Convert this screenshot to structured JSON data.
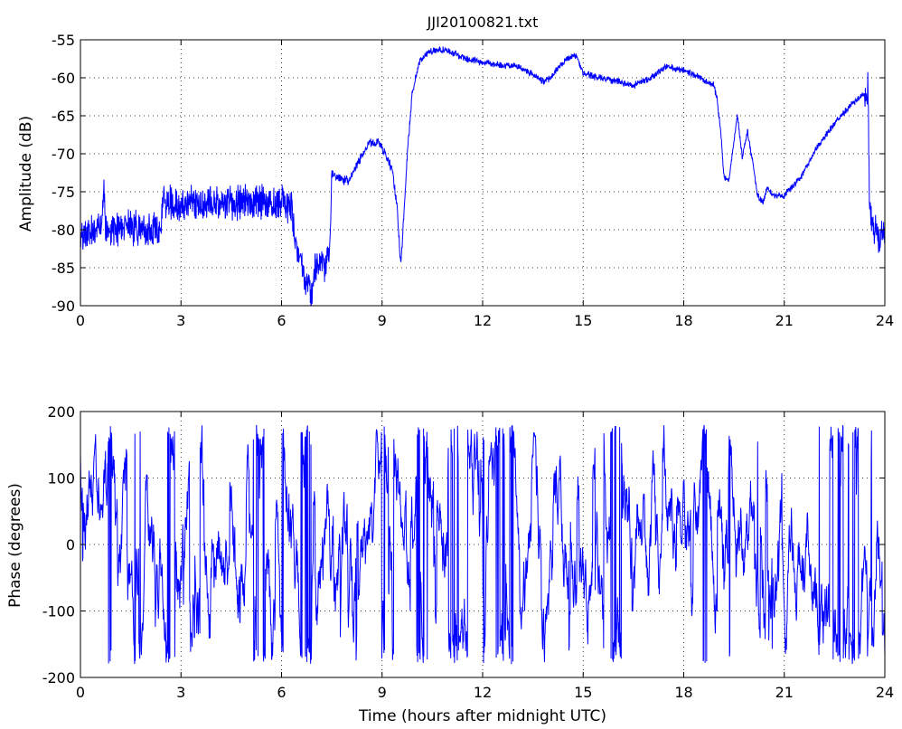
{
  "chart_data": [
    {
      "type": "line",
      "title": "JJI20100821.txt",
      "xlabel": "",
      "ylabel": "Amplitude (dB)",
      "xlim": [
        0,
        24
      ],
      "ylim": [
        -90,
        -55
      ],
      "xticks": [
        0,
        3,
        6,
        9,
        12,
        15,
        18,
        21,
        24
      ],
      "yticks": [
        -55,
        -60,
        -65,
        -70,
        -75,
        -80,
        -85,
        -90
      ],
      "grid": true,
      "color": "#0000ff",
      "series": [
        {
          "noise": 1.8,
          "x": [
            0,
            0.5,
            0.65,
            0.7,
            0.75,
            1.0,
            1.5,
            2.0,
            2.4,
            2.45,
            3.0,
            3.5,
            4.0,
            4.5,
            5.0,
            5.5,
            6.0,
            6.3,
            6.4,
            6.6,
            6.8,
            6.9,
            7.0,
            7.2,
            7.3,
            7.45,
            7.5,
            7.8,
            8.0,
            8.3,
            8.6,
            8.9,
            9.1,
            9.3,
            9.45,
            9.55,
            9.6,
            9.75,
            9.9,
            10.1,
            10.3,
            10.5,
            10.7,
            11.0,
            11.5,
            12.0,
            12.5,
            13.0,
            13.5,
            13.8,
            14.0,
            14.5,
            14.8,
            15.0,
            15.5,
            16.0,
            16.5,
            17.0,
            17.5,
            18.0,
            18.5,
            18.9,
            19.0,
            19.1,
            19.2,
            19.35,
            19.45,
            19.6,
            19.75,
            19.9,
            20.05,
            20.2,
            20.35,
            20.5,
            20.7,
            21.0,
            21.5,
            22.0,
            22.5,
            23.0,
            23.4,
            23.5,
            23.55,
            23.7,
            24.0
          ],
          "values": [
            -80.5,
            -80,
            -79.5,
            -74,
            -80,
            -80,
            -79.5,
            -80,
            -79.5,
            -76.5,
            -76.5,
            -76.5,
            -76.5,
            -76.5,
            -76.5,
            -76.5,
            -76.5,
            -77,
            -82,
            -85,
            -87,
            -89,
            -85,
            -84.5,
            -85,
            -82,
            -72.5,
            -73.5,
            -73.5,
            -71,
            -68.5,
            -68.5,
            -70,
            -72,
            -77,
            -84.5,
            -82,
            -70,
            -62,
            -58,
            -57,
            -56.5,
            -56.3,
            -56.5,
            -57.5,
            -58,
            -58.3,
            -58.5,
            -59.5,
            -60.5,
            -60,
            -57.5,
            -57,
            -59.5,
            -60,
            -60.5,
            -61,
            -60,
            -58.5,
            -59,
            -60,
            -61,
            -63,
            -67,
            -73,
            -73.5,
            -70,
            -65,
            -70.5,
            -67,
            -71,
            -75.5,
            -76.5,
            -74.5,
            -75.5,
            -75.5,
            -73,
            -69,
            -66,
            -63.5,
            -62,
            -61.5,
            -78,
            -80.5,
            -80.5
          ]
        }
      ]
    },
    {
      "type": "line",
      "title": "",
      "xlabel": "Time (hours after midnight UTC)",
      "ylabel": "Phase (degrees)",
      "xlim": [
        0,
        24
      ],
      "ylim": [
        -200,
        200
      ],
      "xticks": [
        0,
        3,
        6,
        9,
        12,
        15,
        18,
        21,
        24
      ],
      "yticks": [
        200,
        100,
        0,
        -100,
        -200
      ],
      "grid": true,
      "color": "#0000ff",
      "series": [
        {
          "range": [
            -180,
            180
          ],
          "style": "wrapped-phase",
          "x": [
            0,
            1.2,
            2.0,
            2.4,
            2.9,
            3.1,
            3.4,
            3.7,
            4.1,
            4.3,
            4.6,
            4.8,
            5.0,
            5.3,
            5.6,
            5.8,
            6.0,
            6.3,
            6.6,
            6.9,
            7.2,
            7.5,
            8.0,
            9.0,
            10.0,
            12.0,
            14.0,
            16.0,
            17.5,
            18.5,
            19.0,
            20.0,
            21.0,
            22.0,
            23.0,
            24.0
          ],
          "values": [
            130,
            80,
            10,
            -50,
            -150,
            160,
            100,
            -100,
            0,
            60,
            -90,
            160,
            80,
            120,
            150,
            90,
            -140,
            170,
            -80,
            -160,
            -30,
            20,
            140,
            10,
            -50,
            60,
            -20,
            30,
            -40,
            10,
            -60,
            50,
            -20,
            40,
            -60,
            -80
          ]
        }
      ]
    }
  ]
}
